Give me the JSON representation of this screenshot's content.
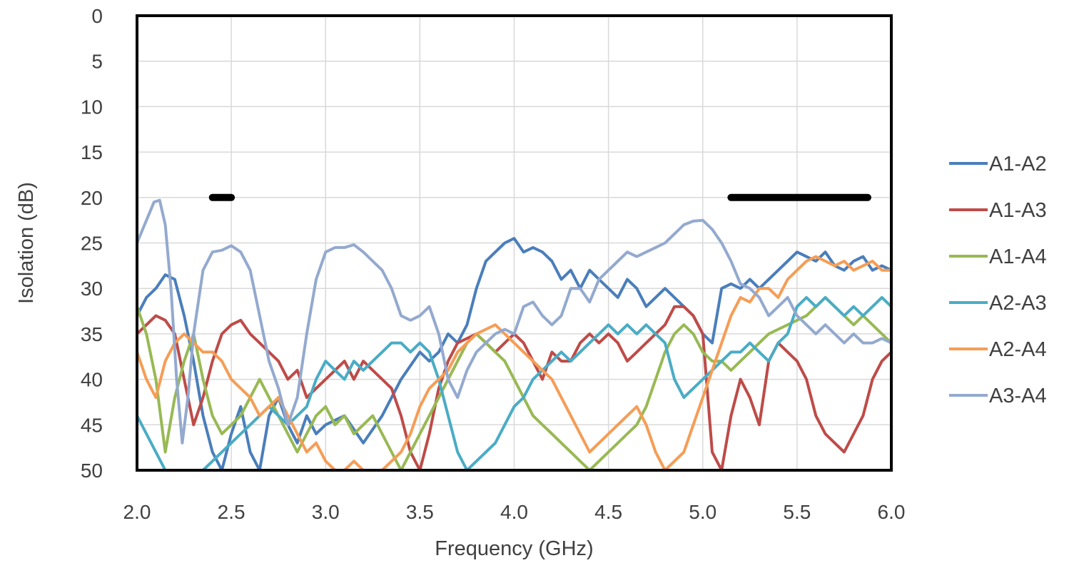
{
  "chart_data": {
    "type": "line",
    "title": "",
    "xlabel": "Frequency (GHz)",
    "ylabel": "Isolation (dB)",
    "xlim": [
      2.0,
      6.0
    ],
    "ylim": [
      0,
      50
    ],
    "y_inverted": true,
    "x_ticks": [
      "2.0",
      "2.5",
      "3.0",
      "3.5",
      "4.0",
      "4.5",
      "5.0",
      "5.5",
      "6.0"
    ],
    "y_ticks": [
      "0",
      "5",
      "10",
      "15",
      "20",
      "25",
      "30",
      "35",
      "40",
      "45",
      "50"
    ],
    "grid": true,
    "legend_position": "right",
    "reference_lines": [
      {
        "x": [
          2.4,
          2.5
        ],
        "y": 20,
        "color": "#000000"
      },
      {
        "x": [
          5.15,
          5.875
        ],
        "y": 20,
        "color": "#000000"
      }
    ],
    "series": [
      {
        "name": "A1-A2",
        "color": "#4a7ebb",
        "x": [
          2.0,
          2.05,
          2.1,
          2.15,
          2.2,
          2.25,
          2.3,
          2.35,
          2.4,
          2.45,
          2.5,
          2.55,
          2.6,
          2.65,
          2.7,
          2.75,
          2.8,
          2.85,
          2.9,
          2.95,
          3.0,
          3.1,
          3.2,
          3.3,
          3.4,
          3.5,
          3.55,
          3.6,
          3.65,
          3.7,
          3.75,
          3.8,
          3.85,
          3.9,
          3.95,
          4.0,
          4.05,
          4.1,
          4.15,
          4.2,
          4.25,
          4.3,
          4.35,
          4.4,
          4.45,
          4.5,
          4.55,
          4.6,
          4.65,
          4.7,
          4.75,
          4.8,
          4.85,
          4.9,
          4.95,
          5.0,
          5.05,
          5.1,
          5.15,
          5.2,
          5.25,
          5.3,
          5.35,
          5.4,
          5.45,
          5.5,
          5.55,
          5.6,
          5.65,
          5.7,
          5.75,
          5.8,
          5.85,
          5.9,
          5.95,
          6.0
        ],
        "y": [
          33,
          31,
          30,
          28.5,
          29,
          33,
          38,
          44,
          48,
          50,
          46,
          43,
          48,
          50,
          44,
          42,
          45,
          47,
          44,
          46,
          45,
          44,
          47,
          44,
          40,
          37,
          38,
          37,
          35,
          36,
          34,
          30,
          27,
          26,
          25,
          24.5,
          26,
          25.5,
          26,
          27,
          29,
          28,
          30,
          28,
          29,
          30,
          31,
          29,
          30,
          32,
          31,
          30,
          31,
          32,
          33,
          35,
          36,
          30,
          29.5,
          30,
          29,
          30,
          29,
          28,
          27,
          26,
          26.5,
          27,
          26,
          27.5,
          28,
          27,
          26.5,
          28,
          27.5,
          28
        ]
      },
      {
        "name": "A1-A3",
        "color": "#be4b48",
        "x": [
          2.0,
          2.05,
          2.1,
          2.15,
          2.2,
          2.25,
          2.3,
          2.35,
          2.4,
          2.45,
          2.5,
          2.55,
          2.6,
          2.65,
          2.7,
          2.75,
          2.8,
          2.85,
          2.9,
          2.95,
          3.0,
          3.05,
          3.1,
          3.15,
          3.2,
          3.25,
          3.3,
          3.35,
          3.4,
          3.45,
          3.5,
          3.55,
          3.6,
          3.65,
          3.7,
          3.75,
          3.8,
          3.85,
          3.9,
          3.95,
          4.0,
          4.05,
          4.1,
          4.15,
          4.2,
          4.25,
          4.3,
          4.35,
          4.4,
          4.45,
          4.5,
          4.55,
          4.6,
          4.65,
          4.7,
          4.75,
          4.8,
          4.85,
          4.9,
          4.95,
          5.0,
          5.05,
          5.1,
          5.15,
          5.2,
          5.25,
          5.3,
          5.35,
          5.4,
          5.45,
          5.5,
          5.55,
          5.6,
          5.65,
          5.7,
          5.75,
          5.8,
          5.85,
          5.9,
          5.95,
          6.0
        ],
        "y": [
          35,
          34,
          33,
          33.5,
          35,
          40,
          45,
          42,
          38,
          35,
          34,
          33.5,
          35,
          36,
          37,
          38,
          40,
          39,
          42,
          41,
          40,
          39,
          38,
          40,
          38,
          39,
          40,
          41,
          44,
          48,
          50,
          46,
          41,
          38,
          36,
          35.5,
          35,
          36,
          37,
          36,
          35,
          36,
          38,
          40,
          37,
          38,
          38,
          36,
          35,
          36,
          35,
          36,
          38,
          37,
          36,
          35,
          34,
          32,
          32,
          33,
          35,
          48,
          50,
          44,
          40,
          42,
          45,
          38,
          36,
          37,
          38,
          40,
          44,
          46,
          47,
          48,
          46,
          44,
          40,
          38,
          37
        ]
      },
      {
        "name": "A1-A4",
        "color": "#98b954",
        "x": [
          2.0,
          2.05,
          2.1,
          2.15,
          2.2,
          2.25,
          2.3,
          2.35,
          2.4,
          2.45,
          2.5,
          2.55,
          2.6,
          2.65,
          2.7,
          2.75,
          2.8,
          2.85,
          2.9,
          2.95,
          3.0,
          3.05,
          3.1,
          3.15,
          3.2,
          3.25,
          3.3,
          3.35,
          3.4,
          3.45,
          3.5,
          3.55,
          3.6,
          3.65,
          3.7,
          3.75,
          3.8,
          3.85,
          3.9,
          3.95,
          4.0,
          4.05,
          4.1,
          4.15,
          4.2,
          4.25,
          4.3,
          4.35,
          4.4,
          4.45,
          4.5,
          4.55,
          4.6,
          4.65,
          4.7,
          4.75,
          4.8,
          4.85,
          4.9,
          4.95,
          5.0,
          5.05,
          5.1,
          5.15,
          5.2,
          5.25,
          5.3,
          5.35,
          5.4,
          5.45,
          5.5,
          5.55,
          5.6,
          5.65,
          5.7,
          5.75,
          5.8,
          5.85,
          5.9,
          5.95,
          6.0
        ],
        "y": [
          32,
          35,
          40,
          48,
          42,
          38,
          35,
          40,
          44,
          46,
          45,
          44,
          42,
          40,
          42,
          44,
          46,
          48,
          46,
          44,
          43,
          45,
          44,
          46,
          45,
          44,
          46,
          48,
          50,
          48,
          46,
          44,
          42,
          40,
          38,
          36,
          35,
          36,
          37,
          38,
          40,
          42,
          44,
          45,
          46,
          47,
          48,
          49,
          50,
          49,
          48,
          47,
          46,
          45,
          43,
          40,
          37,
          35,
          34,
          35,
          37,
          38,
          38,
          39,
          38,
          37,
          36,
          35,
          34.5,
          34,
          33.5,
          33,
          32,
          31,
          32,
          33,
          34,
          33,
          34,
          35,
          36
        ]
      },
      {
        "name": "A2-A3",
        "color": "#4aacc5",
        "x": [
          2.0,
          2.05,
          2.1,
          2.15,
          2.2,
          2.25,
          2.3,
          2.35,
          2.4,
          2.45,
          2.5,
          2.55,
          2.6,
          2.65,
          2.7,
          2.75,
          2.8,
          2.85,
          2.9,
          2.95,
          3.0,
          3.05,
          3.1,
          3.15,
          3.2,
          3.25,
          3.3,
          3.35,
          3.4,
          3.45,
          3.5,
          3.55,
          3.6,
          3.65,
          3.7,
          3.75,
          3.8,
          3.85,
          3.9,
          3.95,
          4.0,
          4.05,
          4.1,
          4.15,
          4.2,
          4.25,
          4.3,
          4.35,
          4.4,
          4.45,
          4.5,
          4.55,
          4.6,
          4.65,
          4.7,
          4.75,
          4.8,
          4.85,
          4.9,
          4.95,
          5.0,
          5.05,
          5.1,
          5.15,
          5.2,
          5.25,
          5.3,
          5.35,
          5.4,
          5.45,
          5.5,
          5.55,
          5.6,
          5.65,
          5.7,
          5.75,
          5.8,
          5.85,
          5.9,
          5.95,
          6.0
        ],
        "y": [
          44,
          46,
          48,
          50,
          50,
          50,
          50,
          50,
          49,
          48,
          47,
          46,
          45,
          44,
          43,
          44,
          45,
          44,
          43,
          40,
          38,
          39,
          40,
          38,
          39,
          38,
          37,
          36,
          36,
          37,
          36,
          37,
          40,
          44,
          48,
          50,
          49,
          48,
          47,
          45,
          43,
          42,
          40,
          39,
          38,
          37,
          38,
          37,
          36,
          35,
          34,
          35,
          34,
          35,
          34,
          35,
          36,
          40,
          42,
          41,
          40,
          39,
          38,
          37,
          37,
          36,
          37,
          38,
          36,
          35,
          32,
          31,
          32,
          31,
          32,
          33,
          32,
          33,
          32,
          31,
          32
        ]
      },
      {
        "name": "A2-A4",
        "color": "#f59d56",
        "x": [
          2.0,
          2.05,
          2.1,
          2.15,
          2.2,
          2.25,
          2.3,
          2.35,
          2.4,
          2.45,
          2.5,
          2.55,
          2.6,
          2.65,
          2.7,
          2.75,
          2.8,
          2.85,
          2.9,
          2.95,
          3.0,
          3.05,
          3.1,
          3.15,
          3.2,
          3.25,
          3.3,
          3.35,
          3.4,
          3.45,
          3.5,
          3.55,
          3.6,
          3.65,
          3.7,
          3.75,
          3.8,
          3.85,
          3.9,
          3.95,
          4.0,
          4.05,
          4.1,
          4.15,
          4.2,
          4.25,
          4.3,
          4.35,
          4.4,
          4.45,
          4.5,
          4.55,
          4.6,
          4.65,
          4.7,
          4.75,
          4.8,
          4.85,
          4.9,
          4.95,
          5.0,
          5.05,
          5.1,
          5.15,
          5.2,
          5.25,
          5.3,
          5.35,
          5.4,
          5.45,
          5.5,
          5.55,
          5.6,
          5.65,
          5.7,
          5.75,
          5.8,
          5.85,
          5.9,
          5.95,
          6.0
        ],
        "y": [
          37,
          40,
          42,
          38,
          36,
          35,
          36,
          37,
          37,
          38,
          40,
          41,
          42,
          44,
          43,
          42,
          44,
          46,
          48,
          47,
          49,
          50,
          50,
          49,
          50,
          50,
          50,
          49,
          48,
          46,
          43,
          41,
          40,
          39,
          37,
          36,
          35,
          34.5,
          34,
          35,
          36,
          37,
          38,
          39,
          40,
          42,
          44,
          46,
          48,
          47,
          46,
          45,
          44,
          43,
          45,
          48,
          50,
          49,
          48,
          45,
          42,
          39,
          36,
          33,
          31,
          31.5,
          30,
          30,
          31,
          29,
          28,
          27,
          26.5,
          27,
          27.5,
          27,
          28,
          27.5,
          27,
          28,
          28
        ]
      },
      {
        "name": "A3-A4",
        "color": "#93a9cf",
        "x": [
          2.0,
          2.03,
          2.06,
          2.09,
          2.12,
          2.15,
          2.18,
          2.21,
          2.24,
          2.27,
          2.3,
          2.35,
          2.4,
          2.45,
          2.5,
          2.55,
          2.6,
          2.65,
          2.7,
          2.75,
          2.8,
          2.85,
          2.9,
          2.95,
          3.0,
          3.05,
          3.1,
          3.15,
          3.2,
          3.25,
          3.3,
          3.35,
          3.4,
          3.45,
          3.5,
          3.55,
          3.6,
          3.65,
          3.7,
          3.75,
          3.8,
          3.85,
          3.9,
          3.95,
          4.0,
          4.05,
          4.1,
          4.15,
          4.2,
          4.25,
          4.3,
          4.35,
          4.4,
          4.45,
          4.5,
          4.55,
          4.6,
          4.65,
          4.7,
          4.75,
          4.8,
          4.85,
          4.9,
          4.95,
          5.0,
          5.05,
          5.1,
          5.15,
          5.2,
          5.25,
          5.3,
          5.35,
          5.4,
          5.45,
          5.5,
          5.55,
          5.6,
          5.65,
          5.7,
          5.75,
          5.8,
          5.85,
          5.9,
          5.95,
          6.0
        ],
        "y": [
          25,
          23.5,
          22,
          20.5,
          20.3,
          23,
          30,
          40,
          47,
          42,
          35,
          28,
          26,
          25.8,
          25.3,
          26,
          28,
          33,
          38,
          41,
          45,
          42,
          35,
          29,
          26,
          25.5,
          25.5,
          25.2,
          26,
          27,
          28,
          30,
          33,
          33.5,
          33,
          32,
          35,
          40,
          42,
          39,
          37,
          36,
          35,
          34.5,
          35,
          32,
          31.5,
          33,
          34,
          33,
          30,
          30,
          31.5,
          29,
          28,
          27,
          26,
          26.5,
          26,
          25.5,
          25,
          24,
          23,
          22.6,
          22.5,
          23.5,
          25,
          27,
          29.5,
          30,
          31,
          33,
          32,
          31,
          33,
          34,
          35,
          34,
          35,
          36,
          35,
          36,
          36,
          35.5,
          36
        ]
      }
    ]
  }
}
